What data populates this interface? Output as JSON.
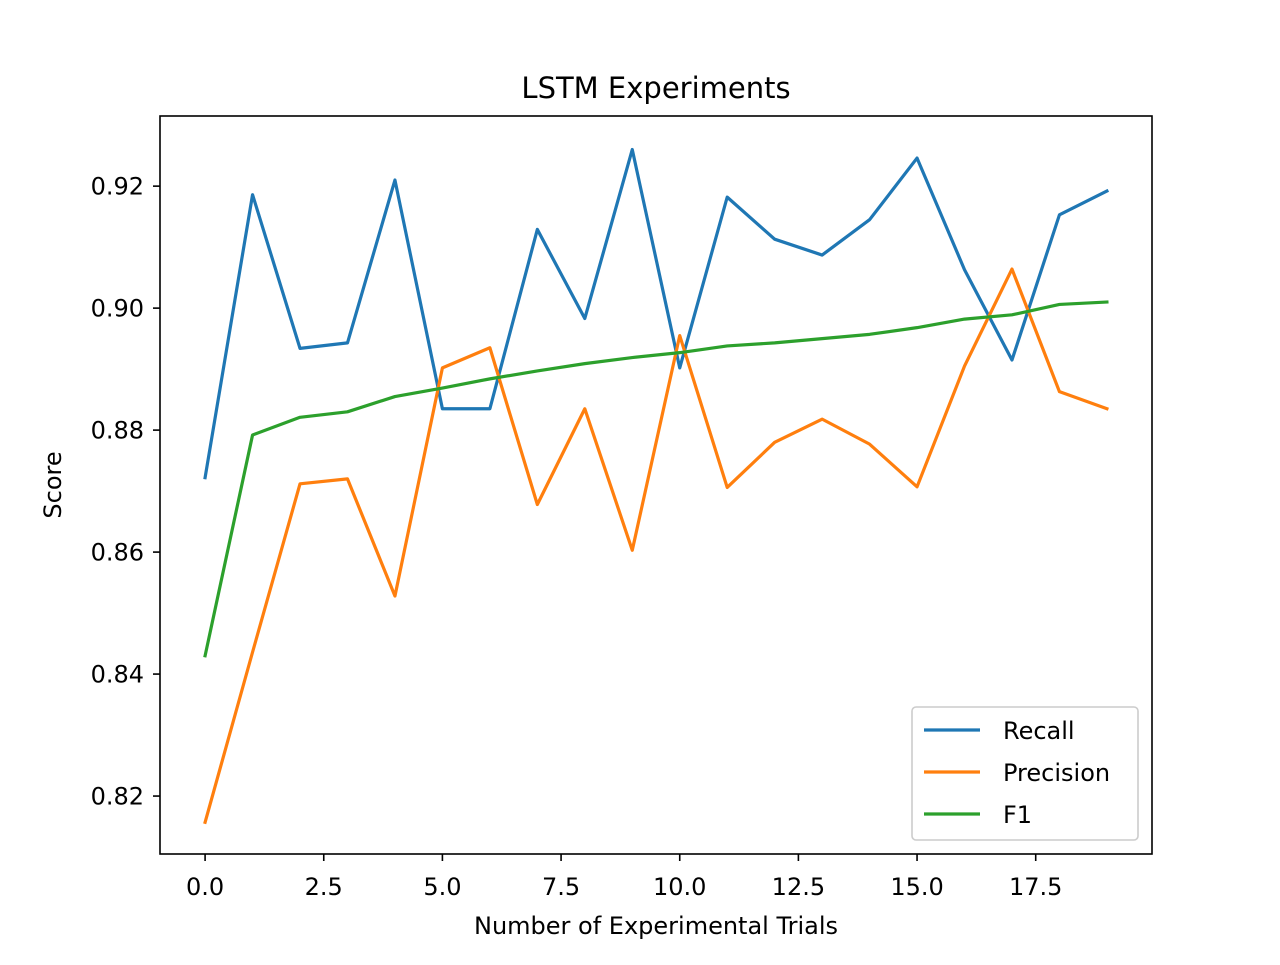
{
  "chart_data": {
    "type": "line",
    "title": "LSTM Experiments",
    "xlabel": "Number of Experimental Trials",
    "ylabel": "Score",
    "xlim": [
      -0.95,
      19.95
    ],
    "ylim": [
      0.8105,
      0.9315
    ],
    "xticks": [
      0.0,
      2.5,
      5.0,
      7.5,
      10.0,
      12.5,
      15.0,
      17.5
    ],
    "xtick_labels": [
      "0.0",
      "2.5",
      "5.0",
      "7.5",
      "10.0",
      "12.5",
      "15.0",
      "17.5"
    ],
    "yticks": [
      0.82,
      0.84,
      0.86,
      0.88,
      0.9,
      0.92
    ],
    "ytick_labels": [
      "0.82",
      "0.84",
      "0.86",
      "0.88",
      "0.90",
      "0.92"
    ],
    "grid": false,
    "legend_position": "lower-right",
    "x": [
      0,
      1,
      2,
      3,
      4,
      5,
      6,
      7,
      8,
      9,
      10,
      11,
      12,
      13,
      14,
      15,
      16,
      17,
      18,
      19
    ],
    "series": [
      {
        "name": "Recall",
        "color": "#1f77b4",
        "values": [
          0.8722,
          0.9186,
          0.8934,
          0.8943,
          0.921,
          0.8835,
          0.8835,
          0.9129,
          0.8983,
          0.926,
          0.8902,
          0.9182,
          0.9113,
          0.9087,
          0.9145,
          0.9246,
          0.9063,
          0.8915,
          0.9153,
          0.9192
        ]
      },
      {
        "name": "Precision",
        "color": "#ff7f0e",
        "values": [
          0.8157,
          0.8436,
          0.8712,
          0.872,
          0.8528,
          0.8902,
          0.8935,
          0.8678,
          0.8835,
          0.8603,
          0.8955,
          0.8706,
          0.878,
          0.8818,
          0.8777,
          0.8707,
          0.8905,
          0.9064,
          0.8863,
          0.8835
        ]
      },
      {
        "name": "F1",
        "color": "#2ca02c",
        "values": [
          0.843,
          0.8792,
          0.8821,
          0.883,
          0.8855,
          0.8869,
          0.8884,
          0.8897,
          0.8909,
          0.8919,
          0.8927,
          0.8938,
          0.8943,
          0.895,
          0.8957,
          0.8968,
          0.8982,
          0.8989,
          0.9006,
          0.901
        ]
      }
    ]
  }
}
